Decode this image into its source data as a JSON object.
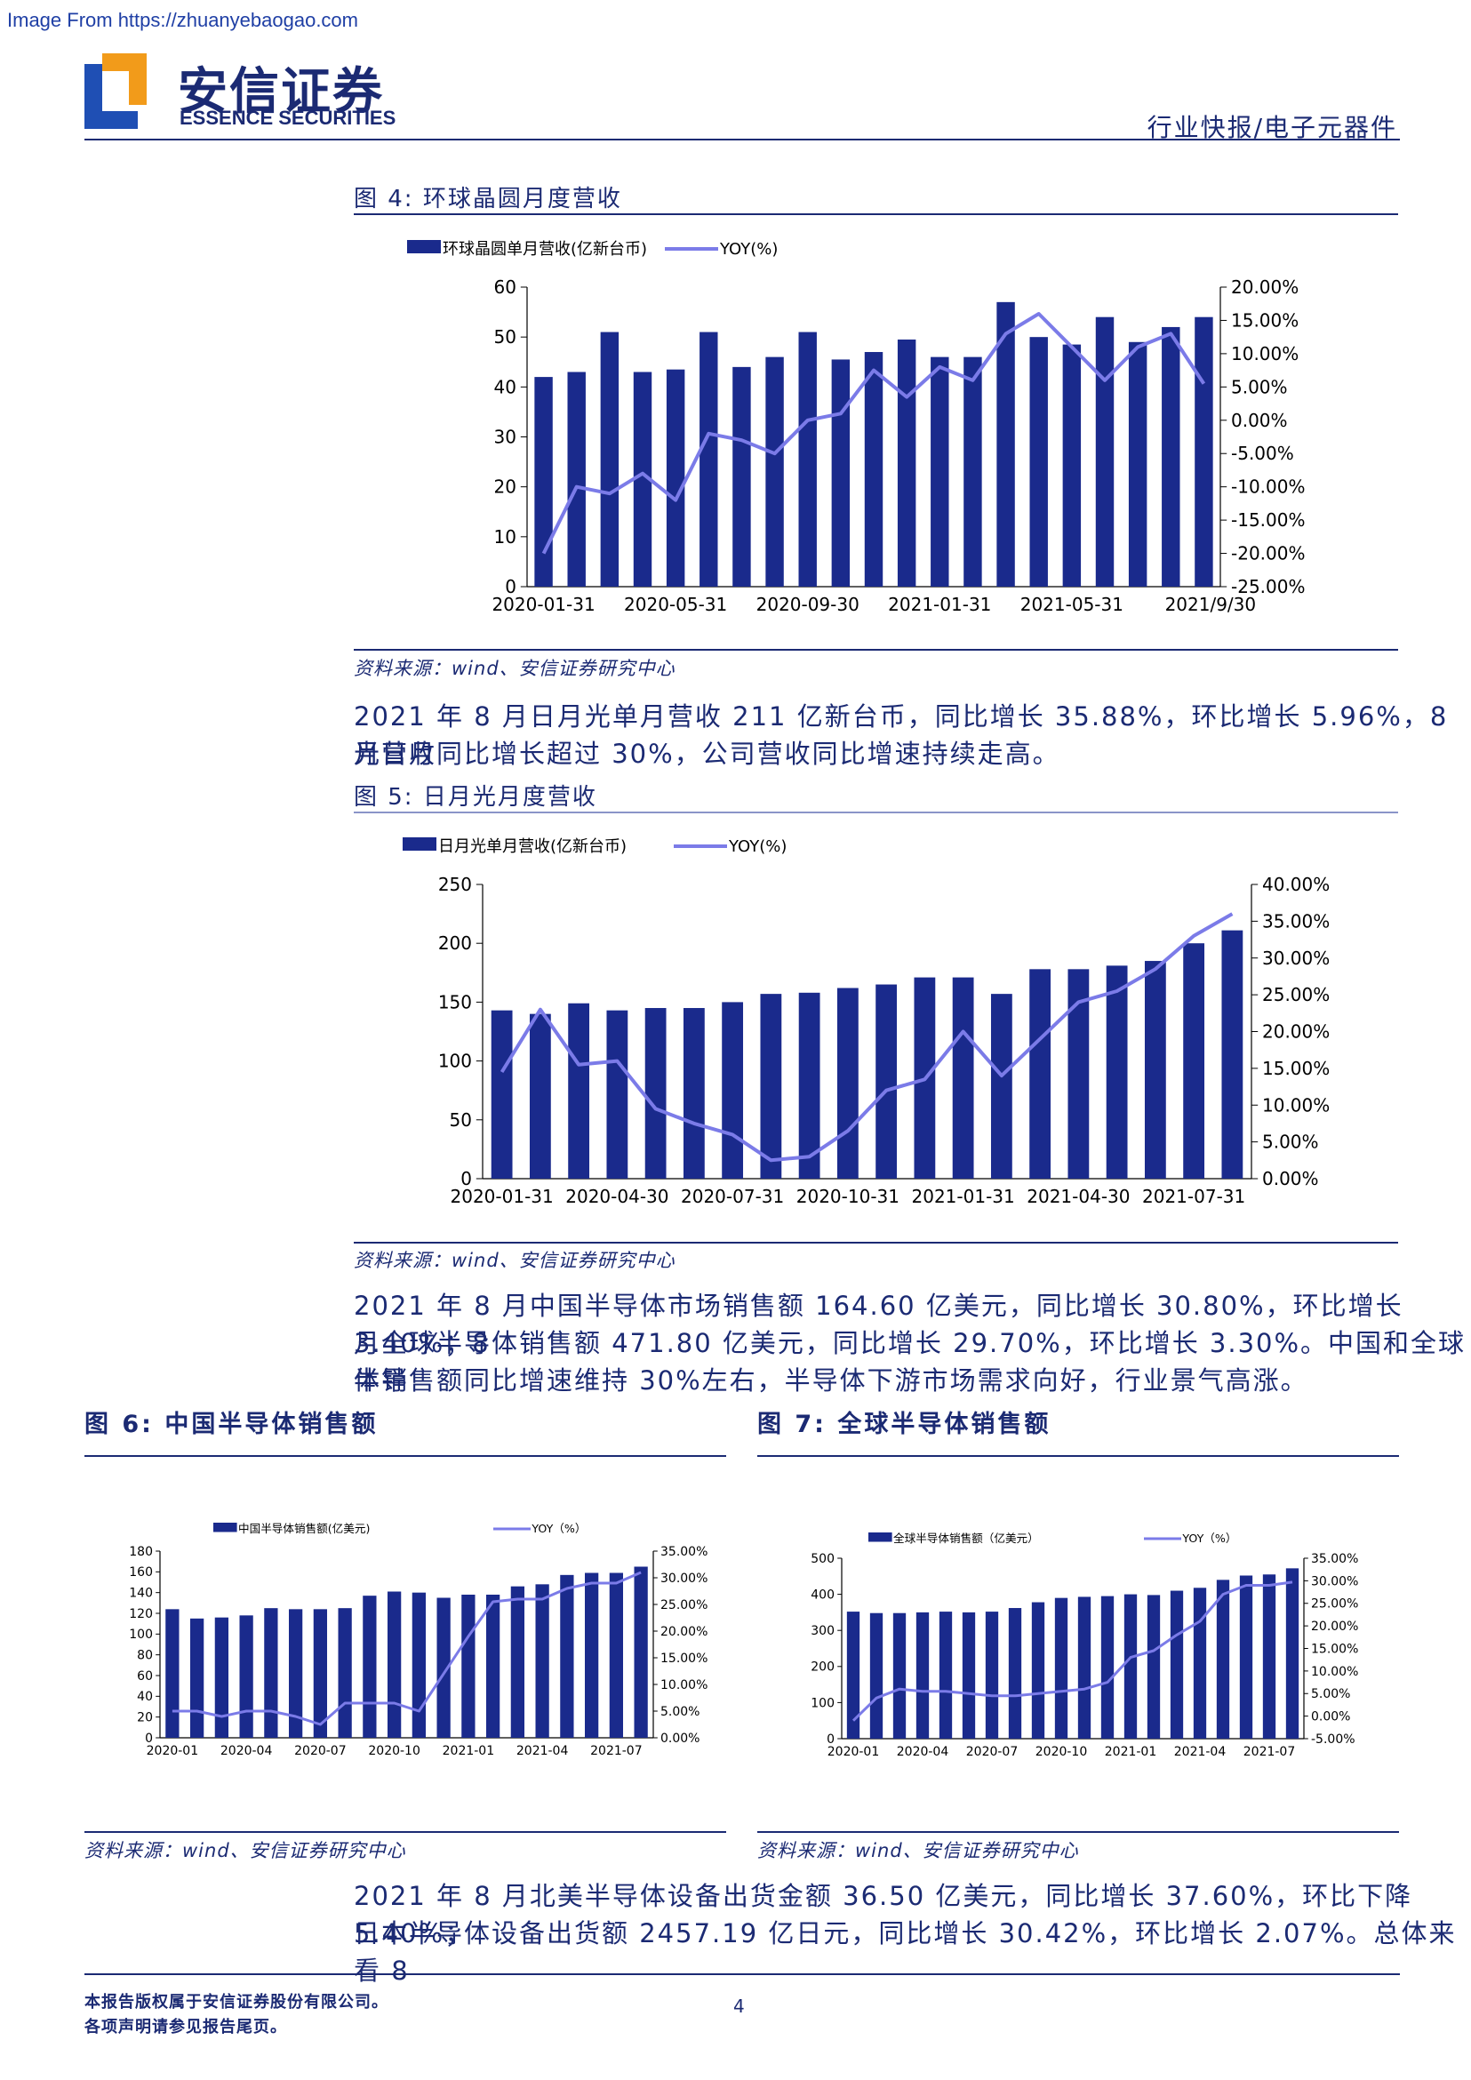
{
  "watermark": "Image From https://zhuanyebaogao.com",
  "header": {
    "logo_cn": "安信证券",
    "logo_en": "ESSENCE SECURITIES",
    "category": "行业快报/电子元器件"
  },
  "colors": {
    "bar": "#1a2a8c",
    "line": "#7b7be8",
    "text": "#1b2a73"
  },
  "figures": {
    "fig4": {
      "title": "图 4:  环球晶圆月度营收",
      "source": "资料来源：wind、安信证券研究中心"
    },
    "fig5": {
      "title": "图 5:  日月光月度营收",
      "source": "资料来源：wind、安信证券研究中心"
    },
    "fig6": {
      "title": "图 6:  中国半导体销售额",
      "source": "资料来源：wind、安信证券研究中心"
    },
    "fig7": {
      "title": "图 7:  全球半导体销售额",
      "source": "资料来源：wind、安信证券研究中心"
    }
  },
  "paragraphs": {
    "p1_l1": "2021 年 8 月日月光单月营收 211 亿新台币，同比增长 35.88%，环比增长 5.96%，8 月日月",
    "p1_l2": "光营收同比增长超过 30%，公司营收同比增速持续走高。",
    "p2_l1": "2021 年 8 月中国半导体市场销售额 164.60 亿美元，同比增长 30.80%，环比增长 3.40%；8",
    "p2_l2": "月全球半导体销售额 471.80 亿美元，同比增长 29.70%，环比增长 3.30%。中国和全球半导",
    "p2_l3": "体销售额同比增速维持 30%左右，半导体下游市场需求向好，行业景气高涨。",
    "p3_l1": "2021 年 8 月北美半导体设备出货金额 36.50 亿美元，同比增长 37.60%，环比下降 5.40%；",
    "p3_l2": "日本半导体设备出货额 2457.19 亿日元，同比增长 30.42%，环比增长 2.07%。总体来看 8"
  },
  "footer": {
    "line1": "本报告版权属于安信证券股份有限公司。",
    "line2": "各项声明请参见报告尾页。",
    "page": "4"
  },
  "chart_data": [
    {
      "id": "fig4",
      "type": "bar",
      "legend": [
        "环球晶圆单月营收(亿新台币)",
        "YOY(%)"
      ],
      "n": 21,
      "x_tick_labels": [
        "2020-01-31",
        "2020-05-31",
        "2020-09-30",
        "2021-01-31",
        "2021-05-31",
        "2021/9/30"
      ],
      "x_tick_index": [
        0,
        4,
        8,
        12,
        16,
        20.2
      ],
      "left_ticks": [
        "60",
        "50",
        "40",
        "30",
        "20",
        "10",
        "0"
      ],
      "right_ticks": [
        "20.00%",
        "15.00%",
        "10.00%",
        "5.00%",
        "0.00%",
        "-5.00%",
        "-10.00%",
        "-15.00%",
        "-20.00%",
        "-25.00%"
      ],
      "ylim": [
        0,
        60
      ],
      "y2lim": [
        -25,
        20
      ],
      "series": [
        {
          "name": "环球晶圆单月营收(亿新台币)",
          "values": [
            42,
            43,
            51,
            43,
            43.5,
            51,
            44,
            46,
            51,
            45.5,
            47,
            49.5,
            46,
            46,
            57,
            50,
            48.5,
            54,
            49,
            52,
            54
          ]
        },
        {
          "name": "YOY(%)",
          "values": [
            -20,
            -10,
            -11,
            -8,
            -12,
            -2,
            -3,
            -5,
            0,
            1,
            7.5,
            3.5,
            8,
            6,
            13,
            16,
            11,
            6,
            11,
            13,
            5.5
          ]
        }
      ]
    },
    {
      "id": "fig5",
      "type": "bar",
      "legend": [
        "日月光单月营收(亿新台币)",
        "YOY(%)"
      ],
      "n": 20,
      "x_tick_labels": [
        "2020-01-31",
        "2020-04-30",
        "2020-07-31",
        "2020-10-31",
        "2021-01-31",
        "2021-04-30",
        "2021-07-31"
      ],
      "x_tick_index": [
        0,
        3,
        6,
        9,
        12,
        15,
        18
      ],
      "left_ticks": [
        "250",
        "200",
        "150",
        "100",
        "50",
        "0"
      ],
      "right_ticks": [
        "40.00%",
        "35.00%",
        "30.00%",
        "25.00%",
        "20.00%",
        "15.00%",
        "10.00%",
        "5.00%",
        "0.00%"
      ],
      "ylim": [
        0,
        250
      ],
      "y2lim": [
        0,
        40
      ],
      "series": [
        {
          "name": "日月光单月营收(亿新台币)",
          "values": [
            143,
            140,
            149,
            143,
            145,
            145,
            150,
            157,
            158,
            162,
            165,
            171,
            171,
            157,
            178,
            178,
            181,
            185,
            200,
            211
          ]
        },
        {
          "name": "YOY(%)",
          "values": [
            14.5,
            23,
            15.5,
            16,
            9.5,
            7.5,
            6,
            2.5,
            3,
            6.5,
            12,
            13.5,
            20,
            14,
            19,
            24,
            25.5,
            28.5,
            33,
            36
          ]
        }
      ]
    },
    {
      "id": "fig6",
      "type": "bar",
      "legend": [
        "中国半导体销售额(亿美元)",
        "YOY（%）"
      ],
      "n": 20,
      "x_tick_labels": [
        "2020-01",
        "2020-04",
        "2020-07",
        "2020-10",
        "2021-01",
        "2021-04",
        "2021-07"
      ],
      "x_tick_index": [
        0,
        3,
        6,
        9,
        12,
        15,
        18
      ],
      "left_ticks": [
        "180",
        "160",
        "140",
        "120",
        "100",
        "80",
        "60",
        "40",
        "20",
        "0"
      ],
      "right_ticks": [
        "35.00%",
        "30.00%",
        "25.00%",
        "20.00%",
        "15.00%",
        "10.00%",
        "5.00%",
        "0.00%"
      ],
      "ylim": [
        0,
        180
      ],
      "y2lim": [
        0,
        35
      ],
      "series": [
        {
          "name": "中国半导体销售额(亿美元)",
          "values": [
            124,
            115,
            116,
            118,
            125,
            124,
            124,
            125,
            137,
            141,
            140,
            135,
            138,
            138,
            146,
            148,
            157,
            159,
            159,
            165
          ]
        },
        {
          "name": "YOY（%）",
          "values": [
            5,
            5,
            4,
            5,
            5,
            4,
            2.5,
            6.5,
            6.5,
            6.5,
            5,
            12,
            19,
            25.5,
            26,
            26,
            28,
            29,
            29,
            31
          ]
        }
      ]
    },
    {
      "id": "fig7",
      "type": "bar",
      "legend": [
        "全球半导体销售额（亿美元）",
        "YOY（%）"
      ],
      "n": 20,
      "x_tick_labels": [
        "2020-01",
        "2020-04",
        "2020-07",
        "2020-10",
        "2021-01",
        "2021-04",
        "2021-07"
      ],
      "x_tick_index": [
        0,
        3,
        6,
        9,
        12,
        15,
        18
      ],
      "left_ticks": [
        "500",
        "400",
        "300",
        "200",
        "100",
        "0"
      ],
      "right_ticks": [
        "35.00%",
        "30.00%",
        "25.00%",
        "20.00%",
        "15.00%",
        "10.00%",
        "5.00%",
        "0.00%",
        "-5.00%"
      ],
      "ylim": [
        0,
        500
      ],
      "y2lim": [
        -5,
        35
      ],
      "series": [
        {
          "name": "全球半导体销售额（亿美元）",
          "values": [
            352,
            348,
            348,
            350,
            352,
            350,
            352,
            362,
            378,
            390,
            393,
            395,
            400,
            398,
            410,
            418,
            440,
            452,
            455,
            472
          ]
        },
        {
          "name": "YOY（%）",
          "values": [
            -1,
            4,
            6,
            5.5,
            5.5,
            5,
            4.5,
            4.5,
            5,
            5.5,
            6,
            7.5,
            13,
            14.5,
            18,
            21,
            27,
            29,
            29,
            29.7
          ]
        }
      ]
    }
  ]
}
